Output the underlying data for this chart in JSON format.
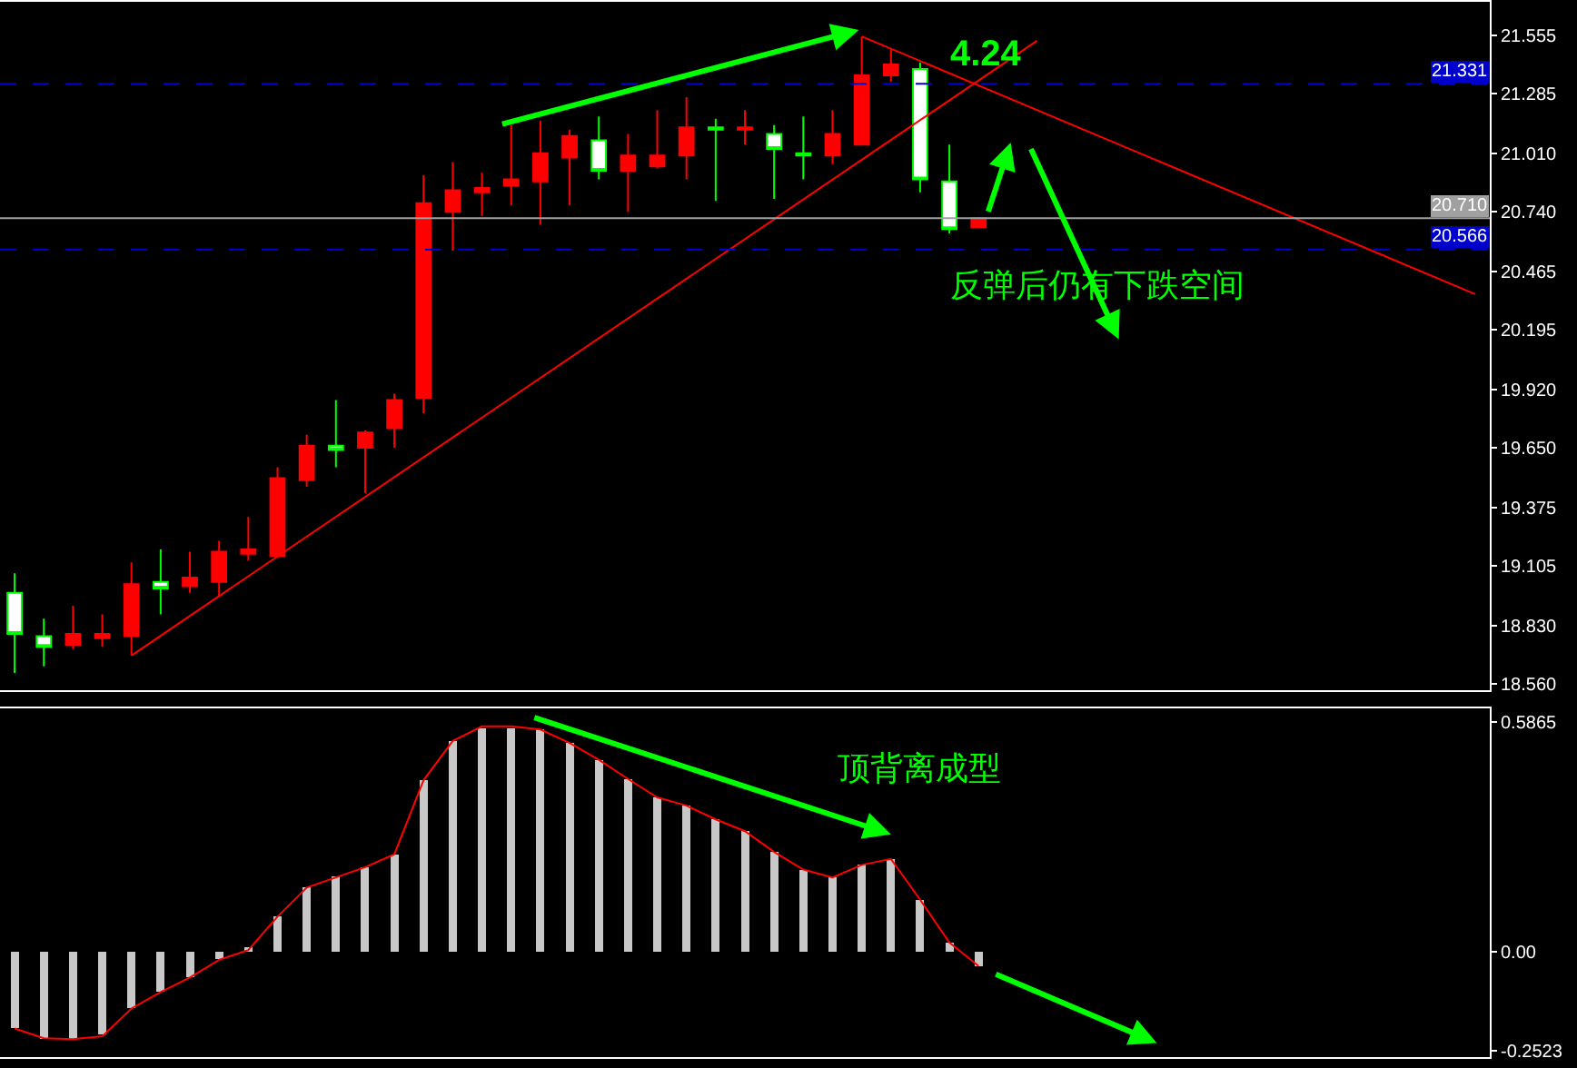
{
  "chart_data": [
    {
      "type": "candlestick",
      "categories": [
        null,
        null,
        null,
        null,
        null,
        null,
        null,
        null,
        null,
        null,
        null,
        null,
        null,
        null,
        null,
        null,
        null,
        null,
        null,
        null,
        null,
        null,
        null,
        null,
        null,
        null,
        null,
        null,
        null,
        null,
        null,
        null,
        null,
        null,
        null,
        null,
        null,
        null,
        null,
        null,
        null,
        null,
        null,
        null,
        null,
        null,
        null,
        null,
        null,
        null,
        null
      ],
      "ohlc": [
        [
          18.98,
          19.07,
          18.61,
          18.79
        ],
        [
          18.78,
          18.86,
          18.64,
          18.73
        ],
        [
          18.74,
          18.92,
          18.72,
          18.79
        ],
        [
          18.77,
          18.88,
          18.73,
          18.79
        ],
        [
          18.78,
          19.12,
          18.69,
          19.02
        ],
        [
          19.03,
          19.18,
          18.88,
          19.0
        ],
        [
          19.01,
          19.17,
          18.98,
          19.05
        ],
        [
          19.03,
          19.22,
          18.96,
          19.17
        ],
        [
          19.16,
          19.33,
          19.13,
          19.18
        ],
        [
          19.15,
          19.56,
          19.14,
          19.51
        ],
        [
          19.5,
          19.71,
          19.47,
          19.66
        ],
        [
          19.66,
          19.87,
          19.56,
          19.64
        ],
        [
          19.65,
          19.73,
          19.44,
          19.72
        ],
        [
          19.74,
          19.9,
          19.65,
          19.87
        ],
        [
          19.88,
          20.91,
          19.81,
          20.78
        ],
        [
          20.74,
          20.97,
          20.56,
          20.84
        ],
        [
          20.83,
          20.92,
          20.72,
          20.85
        ],
        [
          20.86,
          21.14,
          20.77,
          20.89
        ],
        [
          20.88,
          21.16,
          20.68,
          21.01
        ],
        [
          20.99,
          21.12,
          20.77,
          21.09
        ],
        [
          21.07,
          21.18,
          20.89,
          20.93
        ],
        [
          20.93,
          21.1,
          20.74,
          21.0
        ],
        [
          20.95,
          21.21,
          20.94,
          21.0
        ],
        [
          21.0,
          21.27,
          20.89,
          21.13
        ],
        [
          21.13,
          21.17,
          20.79,
          21.12
        ],
        [
          21.12,
          21.21,
          21.05,
          21.13
        ],
        [
          21.1,
          21.14,
          20.8,
          21.03
        ],
        [
          21.01,
          21.18,
          20.89,
          21.0
        ],
        [
          21.0,
          21.21,
          20.96,
          21.1
        ],
        [
          21.05,
          21.55,
          21.05,
          21.37
        ],
        [
          21.37,
          21.49,
          21.34,
          21.42
        ],
        [
          21.4,
          21.43,
          20.83,
          20.89
        ],
        [
          20.88,
          21.05,
          20.64,
          20.66
        ],
        [
          20.67,
          20.71,
          20.67,
          20.71
        ],
        null,
        null,
        null,
        null,
        null,
        null,
        null,
        null,
        null,
        null,
        null,
        null,
        null,
        null,
        null,
        null,
        null
      ],
      "colors": [
        "#00ff00",
        "#00ff00",
        "#ff0000",
        "#ff0000",
        "#ff0000",
        "#00ff00",
        "#ff0000",
        "#ff0000",
        "#ff0000",
        "#ff0000",
        "#ff0000",
        "#00ff00",
        "#ff0000",
        "#ff0000",
        "#ff0000",
        "#ff0000",
        "#ff0000",
        "#ff0000",
        "#ff0000",
        "#ff0000",
        "#00ff00",
        "#ff0000",
        "#ff0000",
        "#ff0000",
        "#00ff00",
        "#ff0000",
        "#00ff00",
        "#00ff00",
        "#ff0000",
        "#ff0000",
        "#ff0000",
        "#00ff00",
        "#00ff00",
        "#ff0000",
        null,
        null,
        null,
        null,
        null,
        null,
        null,
        null,
        null,
        null,
        null,
        null,
        null,
        null,
        null,
        null,
        null
      ],
      "series": [
        {
          "type": "line",
          "color": "#ff0000",
          "values": [
            null,
            null,
            null,
            null,
            18.69,
            null,
            null,
            null,
            null,
            null,
            null,
            null,
            null,
            null,
            null,
            null,
            null,
            null,
            null,
            null,
            null,
            null,
            null,
            null,
            null,
            null,
            null,
            null,
            null,
            null,
            null,
            null,
            null,
            null,
            null,
            21.53,
            null,
            null,
            null,
            null,
            null,
            null,
            null,
            null,
            null,
            null,
            null,
            null,
            null,
            null,
            null
          ]
        },
        {
          "type": "line",
          "color": "#ff0000",
          "values": [
            null,
            null,
            null,
            null,
            null,
            null,
            null,
            null,
            null,
            null,
            null,
            null,
            null,
            null,
            null,
            null,
            null,
            null,
            null,
            null,
            null,
            null,
            null,
            null,
            null,
            null,
            null,
            null,
            null,
            21.55,
            null,
            null,
            null,
            null,
            null,
            null,
            null,
            null,
            null,
            null,
            null,
            null,
            null,
            null,
            null,
            null,
            null,
            null,
            null,
            null,
            20.36
          ]
        }
      ],
      "ylim": [
        18.53,
        21.71
      ],
      "yticks": [
        {
          "value": 18.56,
          "label": "18.560"
        },
        {
          "value": 18.83,
          "label": "18.830"
        },
        {
          "value": 19.105,
          "label": "19.105"
        },
        {
          "value": 19.375,
          "label": "19.375"
        },
        {
          "value": 19.65,
          "label": "19.650"
        },
        {
          "value": 19.92,
          "label": "19.920"
        },
        {
          "value": 20.195,
          "label": "20.195"
        },
        {
          "value": 20.465,
          "label": "20.465"
        },
        {
          "value": 20.74,
          "label": "20.740"
        },
        {
          "value": 21.01,
          "label": "21.010"
        },
        {
          "value": 21.285,
          "label": "21.285"
        },
        {
          "value": 21.555,
          "label": "21.555"
        }
      ],
      "ref_lines": [
        {
          "axis": "y",
          "value": 21.331,
          "label": "21.331",
          "color": "#0000cc",
          "line_style": "dashed"
        },
        {
          "axis": "y",
          "value": 20.566,
          "label": "20.566",
          "color": "#0000cc",
          "line_style": "dashed"
        },
        {
          "axis": "y",
          "value": 20.71,
          "label": "20.710",
          "color": "#a0a0a0",
          "line_style": "solid"
        }
      ],
      "annotations": [
        "4.24",
        "反弹后仍有下跌空间"
      ],
      "tick_labels": "y",
      "grid": false
    },
    {
      "type": "bar",
      "categories": [
        null,
        null,
        null,
        null,
        null,
        null,
        null,
        null,
        null,
        null,
        null,
        null,
        null,
        null,
        null,
        null,
        null,
        null,
        null,
        null,
        null,
        null,
        null,
        null,
        null,
        null,
        null,
        null,
        null,
        null,
        null,
        null,
        null,
        null,
        null,
        null,
        null,
        null,
        null,
        null,
        null,
        null,
        null,
        null,
        null,
        null,
        null,
        null,
        null,
        null,
        null
      ],
      "series": [
        {
          "type": "bar",
          "color": "#c8c8c8",
          "values": [
            -0.195,
            -0.222,
            -0.222,
            -0.21,
            -0.144,
            -0.102,
            -0.065,
            -0.018,
            0.012,
            0.09,
            0.164,
            0.193,
            0.216,
            0.249,
            0.438,
            0.538,
            0.57,
            0.57,
            0.567,
            0.533,
            0.49,
            0.441,
            0.394,
            0.373,
            0.338,
            0.308,
            0.255,
            0.21,
            0.19,
            0.222,
            0.237,
            0.133,
            0.024,
            -0.036,
            null,
            null,
            null,
            null,
            null,
            null,
            null,
            null,
            null,
            null,
            null,
            null,
            null,
            null,
            null,
            null,
            null
          ]
        },
        {
          "type": "line",
          "color": "#ff0000",
          "values": [
            -0.195,
            -0.22,
            -0.222,
            -0.215,
            -0.144,
            -0.102,
            -0.065,
            -0.02,
            0.005,
            0.09,
            0.164,
            0.19,
            0.216,
            0.249,
            0.438,
            0.538,
            0.575,
            0.575,
            0.567,
            0.533,
            0.49,
            0.441,
            0.394,
            0.373,
            0.338,
            0.308,
            0.255,
            0.21,
            0.19,
            0.222,
            0.237,
            0.133,
            0.024,
            -0.036,
            null,
            null,
            null,
            null,
            null,
            null,
            null,
            null,
            null,
            null,
            null,
            null,
            null,
            null,
            null,
            null,
            null
          ]
        }
      ],
      "ylim": [
        -0.268,
        0.621
      ],
      "yticks": [
        {
          "value": -0.2523,
          "label": "-0.2523"
        },
        {
          "value": 0,
          "label": "0.00"
        },
        {
          "value": 0.5865,
          "label": "0.5865"
        }
      ],
      "annotations": [
        "顶背离成型"
      ],
      "tick_labels": "y",
      "grid": false
    }
  ]
}
